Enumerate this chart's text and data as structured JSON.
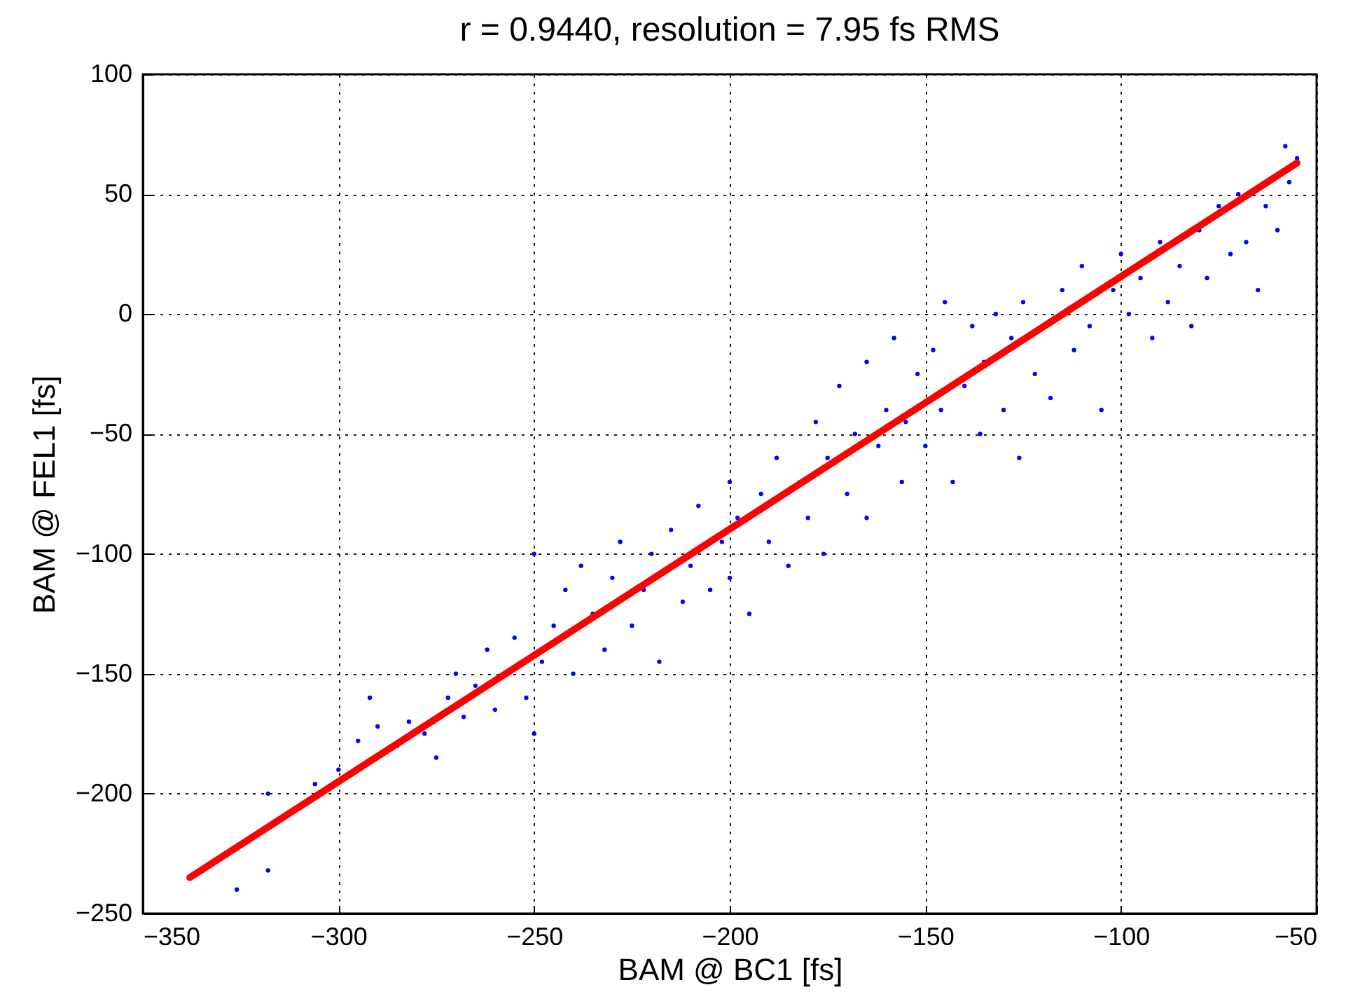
{
  "chart_data": {
    "type": "scatter",
    "title": "r = 0.9440, resolution = 7.95 fs RMS",
    "xlabel": "BAM @ BC1 [fs]",
    "ylabel": "BAM @ FEL1 [fs]",
    "xlim": [
      -350,
      -50
    ],
    "xticks": [
      -350,
      -300,
      -250,
      -200,
      -150,
      -100,
      -50
    ],
    "ylim": [
      -250,
      100
    ],
    "yticks": [
      -250,
      -200,
      -150,
      -100,
      -50,
      0,
      50,
      100
    ],
    "grid": true,
    "series": [
      {
        "marker": "circle",
        "color": "#0000ff",
        "x": [
          -326,
          -318,
          -318,
          -306,
          -300,
          -295,
          -292,
          -290,
          -285,
          -282,
          -278,
          -275,
          -272,
          -270,
          -268,
          -265,
          -262,
          -260,
          -258,
          -255,
          -252,
          -250,
          -250,
          -248,
          -245,
          -242,
          -240,
          -238,
          -235,
          -232,
          -230,
          -228,
          -225,
          -222,
          -220,
          -218,
          -215,
          -212,
          -210,
          -208,
          -205,
          -202,
          -200,
          -200,
          -198,
          -195,
          -192,
          -190,
          -188,
          -185,
          -182,
          -180,
          -178,
          -176,
          -175,
          -172,
          -170,
          -168,
          -165,
          -165,
          -162,
          -160,
          -158,
          -156,
          -155,
          -152,
          -150,
          -148,
          -146,
          -145,
          -143,
          -140,
          -138,
          -136,
          -135,
          -132,
          -130,
          -128,
          -126,
          -125,
          -122,
          -118,
          -115,
          -112,
          -110,
          -108,
          -105,
          -102,
          -100,
          -98,
          -95,
          -92,
          -90,
          -88,
          -85,
          -82,
          -80,
          -78,
          -75,
          -72,
          -70,
          -68,
          -65,
          -63,
          -60,
          -58,
          -57,
          -55
        ],
        "values": [
          -240,
          -232,
          -200,
          -196,
          -190,
          -178,
          -160,
          -172,
          -180,
          -170,
          -175,
          -185,
          -160,
          -150,
          -168,
          -155,
          -140,
          -165,
          null,
          -135,
          -160,
          -100,
          -175,
          -145,
          -130,
          -115,
          -150,
          -105,
          -125,
          -140,
          -110,
          -95,
          -130,
          -115,
          -100,
          -145,
          -90,
          -120,
          -105,
          -80,
          -115,
          -95,
          -70,
          -110,
          -85,
          -125,
          -75,
          -95,
          -60,
          -105,
          -70,
          -85,
          -45,
          -100,
          -60,
          -30,
          -75,
          -50,
          -20,
          -85,
          -55,
          -40,
          -10,
          -70,
          -45,
          -25,
          -55,
          -15,
          -40,
          5,
          -70,
          -30,
          -5,
          -50,
          -20,
          0,
          -40,
          -10,
          -60,
          5,
          -25,
          -35,
          10,
          -15,
          20,
          -5,
          -40,
          10,
          25,
          0,
          15,
          -10,
          30,
          5,
          20,
          -5,
          35,
          15,
          45,
          25,
          50,
          30,
          10,
          45,
          35,
          70,
          55,
          65
        ]
      },
      {
        "type": "line",
        "color": "#ff0000",
        "x": [
          -338,
          -55
        ],
        "values": [
          -235,
          63
        ]
      }
    ]
  }
}
